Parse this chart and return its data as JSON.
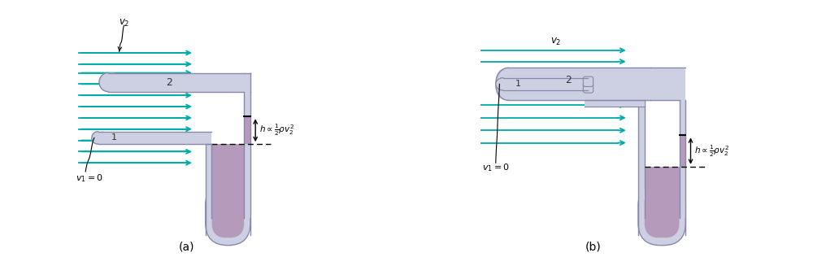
{
  "bg_color": "#ffffff",
  "tube_color": "#cdd0e3",
  "tube_edge_color": "#8888aa",
  "fluid_color": "#b59abb",
  "arrow_color": "#00aaaa",
  "label_a": "(a)",
  "label_b": "(b)"
}
